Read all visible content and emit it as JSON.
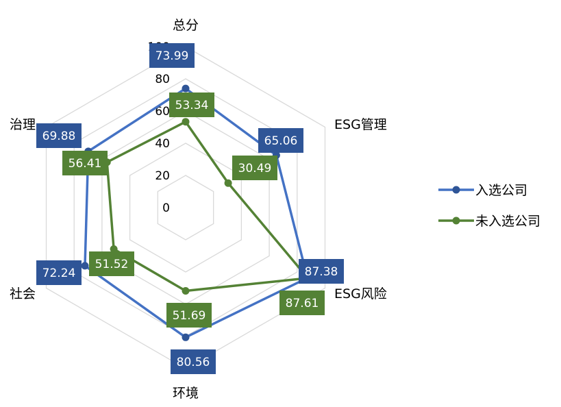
{
  "chart_data": {
    "type": "radar",
    "title": "",
    "axes": [
      "总分",
      "ESG管理",
      "ESG风险",
      "环境",
      "社会",
      "治理"
    ],
    "rlim": [
      0,
      100
    ],
    "ticks": [
      "0",
      "20",
      "40",
      "60",
      "80",
      "100"
    ],
    "grid": true,
    "legend_position": "right",
    "series": [
      {
        "name": "入选公司",
        "values": [
          73.99,
          65.06,
          87.38,
          80.56,
          72.24,
          69.88
        ],
        "labels": [
          "73.99",
          "65.06",
          "87.38",
          "80.56",
          "72.24",
          "69.88"
        ],
        "line_color": "#4472C4",
        "marker_color": "#2F5597",
        "label_bg": "#2F5597"
      },
      {
        "name": "未入选公司",
        "values": [
          53.34,
          30.49,
          87.61,
          51.69,
          51.52,
          56.41
        ],
        "labels": [
          "53.34",
          "30.49",
          "87.61",
          "51.69",
          "51.52",
          "56.41"
        ],
        "line_color": "#548235",
        "marker_color": "#548235",
        "label_bg": "#548235"
      }
    ]
  }
}
